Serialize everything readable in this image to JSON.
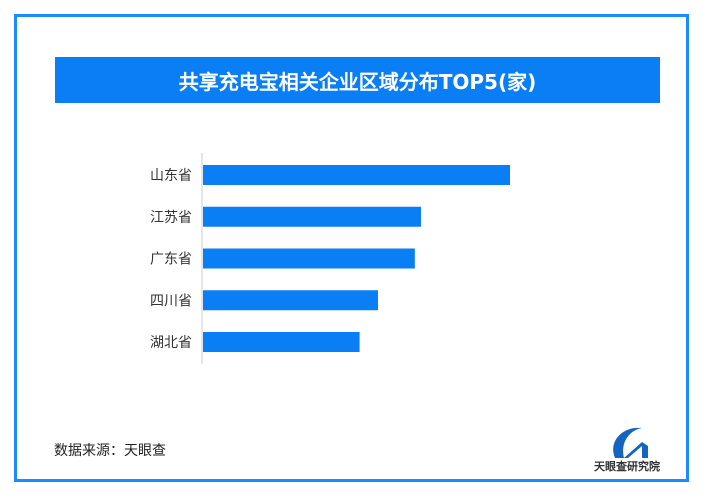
{
  "chart_data": {
    "type": "bar",
    "orientation": "horizontal",
    "title": "共享充电宝相关企业区域分布TOP5(家)",
    "categories": [
      "山东省",
      "江苏省",
      "广东省",
      "四川省",
      "湖北省"
    ],
    "values": [
      100,
      71,
      69,
      57,
      51
    ],
    "value_note": "",
    "grid": false,
    "color": "#0a7ef5"
  },
  "source": "数据来源：天眼查",
  "logo": {
    "text": "天眼查研究院"
  }
}
